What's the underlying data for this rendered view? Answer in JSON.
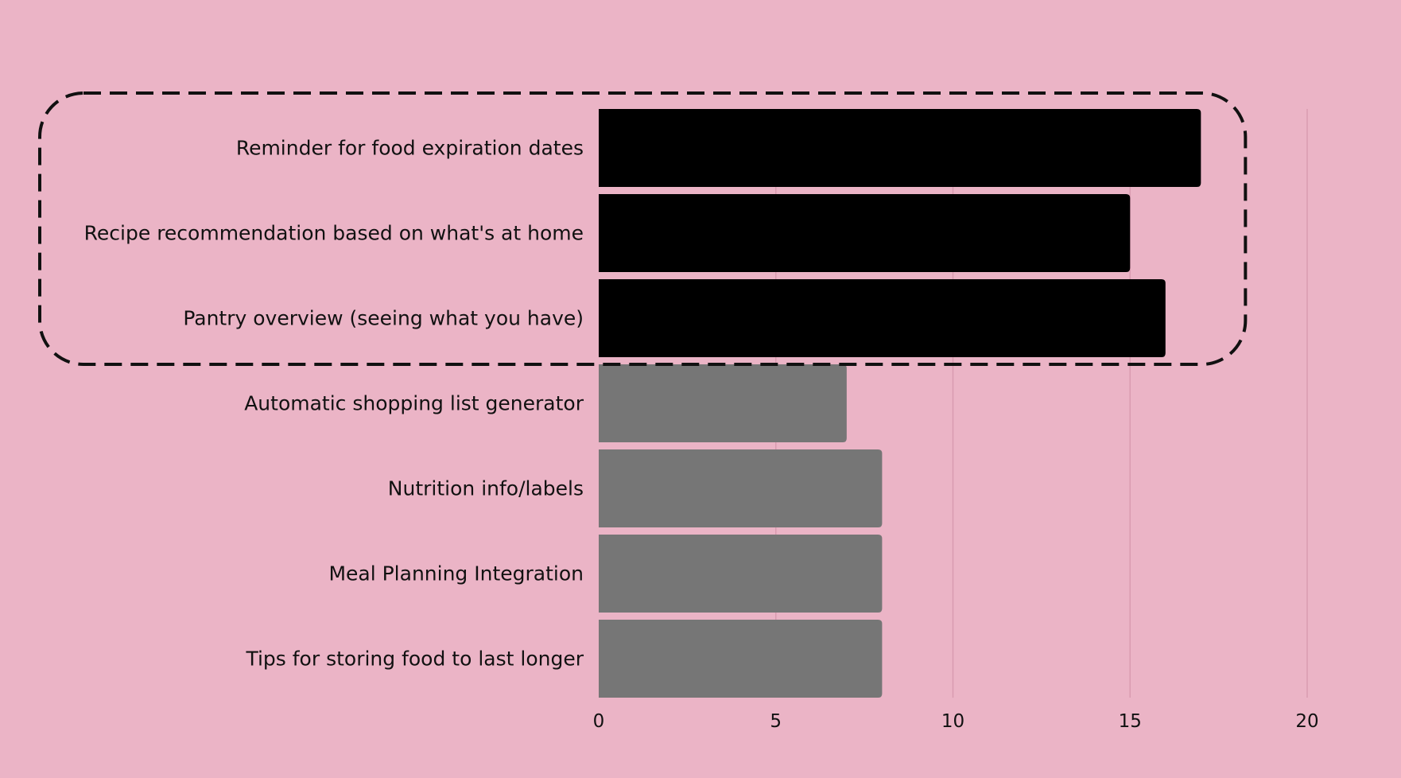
{
  "colors": {
    "background": "#EBB4C6",
    "highlight_bar": "#000000",
    "normal_bar": "#767676",
    "grid": "#D99BB0",
    "outline": "#111111"
  },
  "chart_data": {
    "type": "bar",
    "orientation": "horizontal",
    "categories": [
      "Reminder for food expiration dates",
      "Recipe recommendation based on what's at home",
      "Pantry overview (seeing what you have)",
      "Automatic shopping list generator",
      "Nutrition info/labels",
      "Meal Planning Integration",
      "Tips for storing food to last longer"
    ],
    "values": [
      17,
      15,
      16,
      7,
      8,
      8,
      8
    ],
    "highlighted": [
      true,
      true,
      true,
      false,
      false,
      false,
      false
    ],
    "highlight_style": "dashed rounded outline around the top three bars",
    "xlim": [
      0,
      20
    ],
    "xticks": [
      "0",
      "5",
      "10",
      "15",
      "20"
    ],
    "grid": "vertical",
    "title": "",
    "xlabel": "",
    "ylabel": ""
  }
}
